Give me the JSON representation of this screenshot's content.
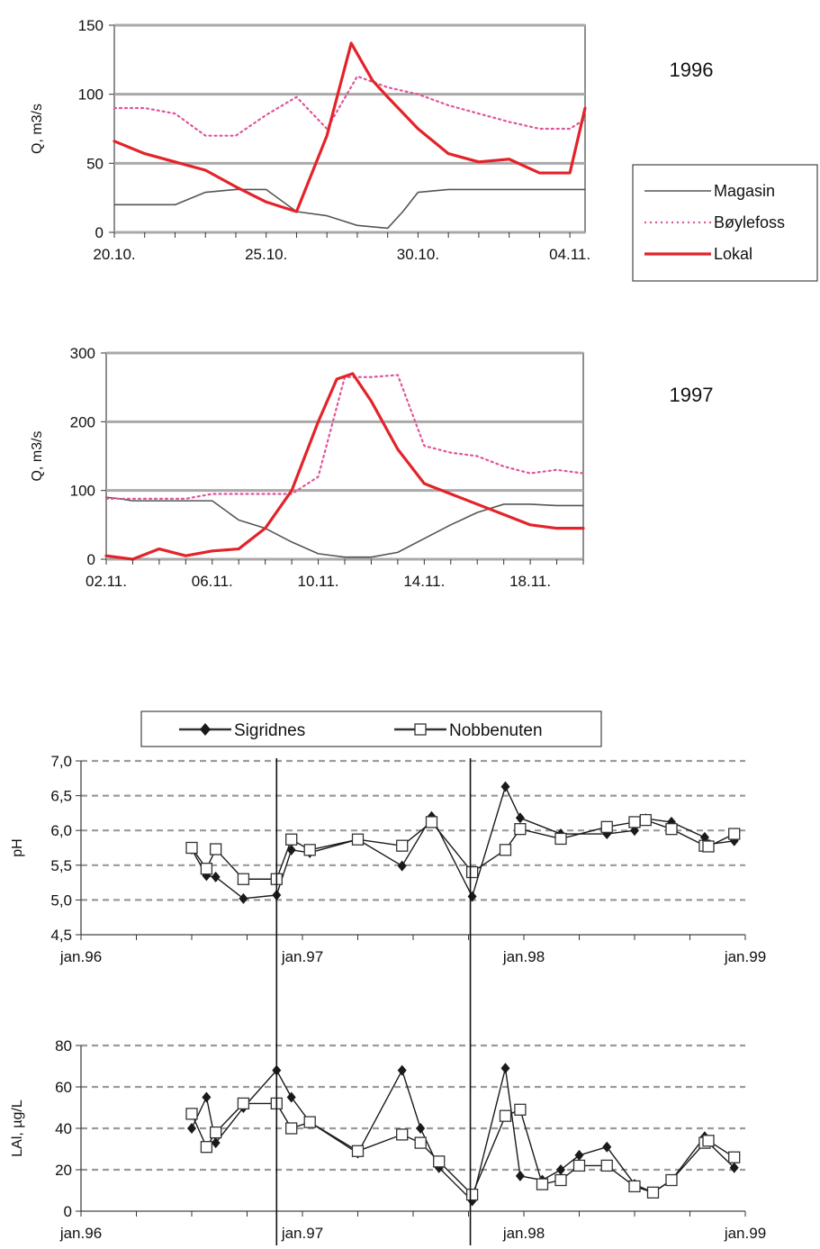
{
  "chart_data": [
    {
      "type": "line",
      "title": "1996",
      "xlabel": "",
      "ylabel": "Q, m3/s",
      "ylim": [
        0,
        150
      ],
      "yticks": [
        0,
        50,
        100,
        150
      ],
      "x_tick_labels": [
        "20.10.",
        "25.10.",
        "30.10.",
        "04.11."
      ],
      "x_tick_days": [
        0,
        5,
        10,
        15
      ],
      "x_range_days": [
        0,
        15.5
      ],
      "grid": "horizontal",
      "legend": "right",
      "series": [
        {
          "name": "Magasin",
          "style": "solid-gray",
          "x": [
            0,
            2,
            3,
            4,
            5,
            6,
            7,
            8,
            9,
            9.5,
            10,
            11,
            12,
            13,
            14,
            15,
            15.5
          ],
          "y": [
            20,
            20,
            29,
            31,
            31,
            15,
            12,
            5,
            3,
            15,
            29,
            31,
            31,
            31,
            31,
            31,
            31
          ]
        },
        {
          "name": "Bøylefoss",
          "style": "dotted-pink",
          "x": [
            0,
            1,
            2,
            3,
            4,
            5,
            6,
            7,
            8,
            9,
            10,
            11,
            12,
            13,
            14,
            15,
            15.5
          ],
          "y": [
            90,
            90,
            86,
            70,
            70,
            85,
            98,
            75,
            113,
            105,
            100,
            92,
            86,
            80,
            75,
            75,
            82
          ]
        },
        {
          "name": "Lokal",
          "style": "solid-red",
          "x": [
            0,
            1,
            2,
            3,
            4,
            5,
            6,
            7,
            7.8,
            8.5,
            9,
            10,
            11,
            12,
            13,
            14,
            15,
            15.5
          ],
          "y": [
            66,
            57,
            51,
            45,
            33,
            22,
            15,
            70,
            137,
            110,
            98,
            75,
            57,
            51,
            53,
            43,
            43,
            90
          ]
        }
      ]
    },
    {
      "type": "line",
      "title": "1997",
      "xlabel": "",
      "ylabel": "Q, m3/s",
      "ylim": [
        0,
        300
      ],
      "yticks": [
        0,
        100,
        200,
        300
      ],
      "x_tick_labels": [
        "02.11.",
        "06.11.",
        "10.11.",
        "14.11.",
        "18.11."
      ],
      "x_tick_days": [
        0,
        4,
        8,
        12,
        16
      ],
      "x_range_days": [
        0,
        18
      ],
      "grid": "horizontal",
      "series": [
        {
          "name": "Magasin",
          "style": "solid-gray",
          "x": [
            0,
            0.5,
            1,
            2,
            3,
            4,
            5,
            6,
            7,
            8,
            9,
            10,
            11,
            12,
            13,
            14,
            15,
            16,
            17,
            18
          ],
          "y": [
            90,
            88,
            85,
            85,
            85,
            85,
            57,
            45,
            25,
            8,
            3,
            3,
            10,
            30,
            50,
            68,
            80,
            80,
            78,
            78
          ]
        },
        {
          "name": "Bøylefoss",
          "style": "dotted-pink",
          "x": [
            0,
            1,
            2,
            3,
            4,
            5,
            6,
            7,
            8,
            9,
            10,
            11,
            12,
            13,
            14,
            15,
            16,
            17,
            18
          ],
          "y": [
            88,
            88,
            88,
            88,
            95,
            95,
            95,
            95,
            120,
            265,
            265,
            268,
            165,
            155,
            150,
            135,
            125,
            130,
            125
          ]
        },
        {
          "name": "Lokal",
          "style": "solid-red",
          "x": [
            0,
            1,
            2,
            3,
            4,
            5,
            6,
            7,
            8,
            8.7,
            9.3,
            10,
            11,
            12,
            13,
            14,
            15,
            16,
            17,
            18
          ],
          "y": [
            5,
            0,
            15,
            5,
            12,
            15,
            45,
            100,
            200,
            262,
            270,
            230,
            160,
            110,
            95,
            80,
            65,
            50,
            45,
            45
          ]
        }
      ]
    },
    {
      "type": "line",
      "title": "",
      "xlabel": "",
      "ylabel": "pH",
      "ylim": [
        4.5,
        7.0
      ],
      "yticks": [
        "4,5",
        "5,0",
        "5,5",
        "6,0",
        "6,5",
        "7,0"
      ],
      "x_tick_labels": [
        "jan.96",
        "jan.97",
        "jan.98",
        "jan.99"
      ],
      "x_range_months": [
        0,
        36
      ],
      "grid": "horizontal-dashed",
      "legend": "top",
      "event_lines_month": [
        10.6,
        21.1
      ],
      "series": [
        {
          "name": "Sigridnes",
          "marker": "filled-diamond",
          "x": [
            6,
            6.8,
            7.3,
            8.8,
            10.6,
            11.4,
            12.4,
            15,
            17.4,
            19,
            21.2,
            23,
            23.8,
            26,
            28.5,
            30,
            30.6,
            32,
            33.8,
            34,
            35.4
          ],
          "y": [
            5.73,
            5.35,
            5.33,
            5.02,
            5.07,
            5.72,
            5.68,
            5.87,
            5.49,
            6.2,
            5.05,
            6.63,
            6.18,
            5.95,
            5.95,
            6.0,
            6.17,
            6.12,
            5.9,
            5.8,
            5.85
          ]
        },
        {
          "name": "Nobbenuten",
          "marker": "open-square",
          "x": [
            6,
            6.8,
            7.3,
            8.8,
            10.6,
            11.4,
            12.4,
            15,
            17.4,
            19,
            21.2,
            23,
            23.8,
            26,
            28.5,
            30,
            30.6,
            32,
            33.8,
            34,
            35.4
          ],
          "y": [
            5.75,
            5.45,
            5.73,
            5.3,
            5.3,
            5.87,
            5.72,
            5.87,
            5.78,
            6.12,
            5.4,
            5.72,
            6.02,
            5.88,
            6.05,
            6.12,
            6.15,
            6.02,
            5.78,
            5.77,
            5.95
          ]
        }
      ]
    },
    {
      "type": "line",
      "title": "",
      "xlabel": "",
      "ylabel": "LAl, µg/L",
      "ylim": [
        0,
        80
      ],
      "yticks": [
        0,
        20,
        40,
        60,
        80
      ],
      "x_tick_labels": [
        "jan.96",
        "jan.97",
        "jan.98",
        "jan.99"
      ],
      "x_range_months": [
        0,
        36
      ],
      "grid": "horizontal-dashed",
      "event_lines_month": [
        10.6,
        21.1
      ],
      "series": [
        {
          "name": "Sigridnes",
          "x": [
            6,
            6.8,
            7.3,
            8.8,
            10.6,
            11.4,
            12.4,
            15,
            17.4,
            18.4,
            19.4,
            21.2,
            23,
            23.8,
            25,
            26,
            27,
            28.5,
            30,
            31,
            32,
            33.8,
            34,
            35.4
          ],
          "y": [
            40,
            55,
            33,
            50,
            68,
            55,
            43,
            28,
            68,
            40,
            21,
            5,
            69,
            17,
            15,
            20,
            27,
            31,
            13,
            9,
            15,
            36,
            33,
            21
          ]
        },
        {
          "name": "Nobbenuten",
          "x": [
            6,
            6.8,
            7.3,
            8.8,
            10.6,
            11.4,
            12.4,
            15,
            17.4,
            18.4,
            19.4,
            21.2,
            23,
            23.8,
            25,
            26,
            27,
            28.5,
            30,
            31,
            32,
            33.8,
            34,
            35.4
          ],
          "y": [
            47,
            31,
            38,
            52,
            52,
            40,
            43,
            29,
            37,
            33,
            24,
            8,
            46,
            49,
            13,
            15,
            22,
            22,
            12,
            9,
            15,
            33,
            34,
            26
          ]
        }
      ]
    }
  ]
}
